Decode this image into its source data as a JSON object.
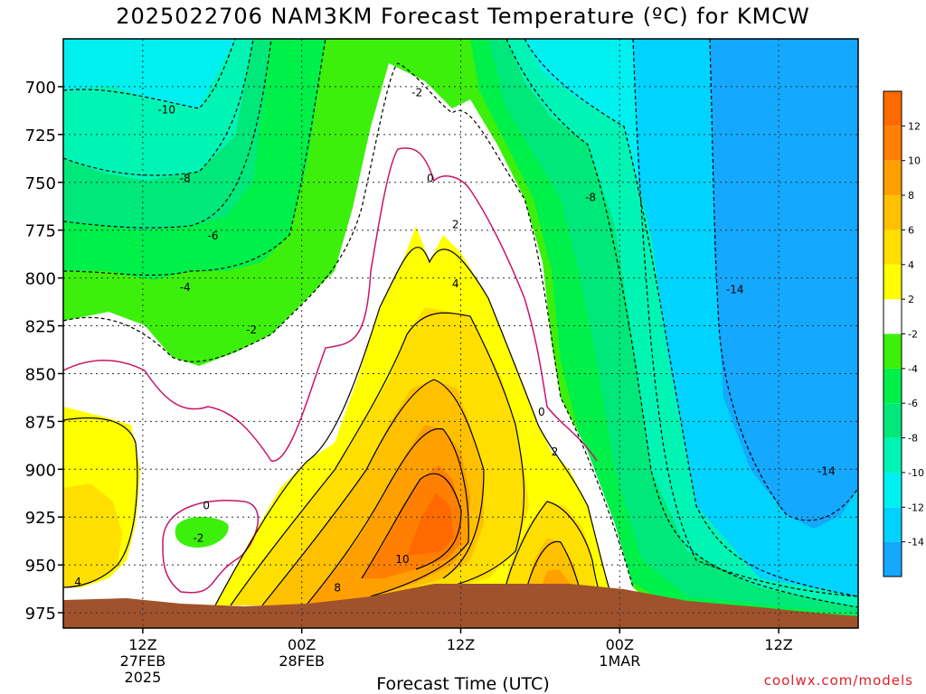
{
  "title": "2025022706 NAM3KM Forecast Temperature (ºC) for KMCW",
  "credit": "coolwx.com/models",
  "chart_data": {
    "type": "heatmap",
    "title": "2025022706 NAM3KM Forecast Temperature (ºC) for KMCW",
    "xlabel": "Forecast Time (UTC)",
    "ylabel": "",
    "y_axis": {
      "ticks": [
        700,
        725,
        750,
        775,
        800,
        825,
        850,
        875,
        900,
        925,
        950,
        975
      ],
      "range": [
        675,
        983
      ],
      "inverted": true
    },
    "x_axis": {
      "range_hours": [
        0,
        60
      ],
      "ticks": [
        {
          "hour": 6,
          "label": "12Z",
          "sub": [
            "27FEB",
            "2025"
          ]
        },
        {
          "hour": 18,
          "label": "00Z",
          "sub": [
            "28FEB"
          ]
        },
        {
          "hour": 30,
          "label": "12Z",
          "sub": []
        },
        {
          "hour": 42,
          "label": "00Z",
          "sub": [
            "1MAR"
          ]
        },
        {
          "hour": 54,
          "label": "12Z",
          "sub": []
        }
      ]
    },
    "grid": true,
    "colorbar": {
      "placement": "right",
      "levels": [
        -16,
        -14,
        -12,
        -10,
        -8,
        -6,
        -4,
        -2,
        2,
        4,
        6,
        8,
        10,
        12,
        14
      ],
      "labels": [
        "-14",
        "-12",
        "-10",
        "-8",
        "-6",
        "-4",
        "-2",
        "2",
        "4",
        "6",
        "8",
        "10",
        "12"
      ],
      "colors": [
        "#14a8ff",
        "#00d3ff",
        "#00f0f0",
        "#00f5b4",
        "#00e87a",
        "#00f04a",
        "#3cf00c",
        "#ffffff",
        "#ffff00",
        "#ffdf00",
        "#ffc000",
        "#ffa000",
        "#ff8000",
        "#ff6a00"
      ]
    },
    "contour_labels": [
      {
        "value": "-10",
        "t": 7.8,
        "p": 712
      },
      {
        "value": "-8",
        "t": 9.2,
        "p": 748
      },
      {
        "value": "-6",
        "t": 11.3,
        "p": 778
      },
      {
        "value": "-4",
        "t": 9.2,
        "p": 805
      },
      {
        "value": "-2",
        "t": 14.2,
        "p": 827
      },
      {
        "value": "-2",
        "t": 26.7,
        "p": 703
      },
      {
        "value": "0",
        "t": 27.7,
        "p": 748
      },
      {
        "value": "2",
        "t": 29.6,
        "p": 772
      },
      {
        "value": "4",
        "t": 29.6,
        "p": 803
      },
      {
        "value": "-8",
        "t": 39.8,
        "p": 758
      },
      {
        "value": "-14",
        "t": 50.7,
        "p": 806
      },
      {
        "value": "-14",
        "t": 57.6,
        "p": 901
      },
      {
        "value": "0",
        "t": 36.1,
        "p": 870
      },
      {
        "value": "2",
        "t": 37.1,
        "p": 891
      },
      {
        "value": "0",
        "t": 10.8,
        "p": 919
      },
      {
        "value": "-2",
        "t": 10.2,
        "p": 936
      },
      {
        "value": "4",
        "t": 1.1,
        "p": 959
      },
      {
        "value": "10",
        "t": 25.6,
        "p": 947
      },
      {
        "value": "8",
        "t": 20.7,
        "p": 962
      }
    ]
  }
}
